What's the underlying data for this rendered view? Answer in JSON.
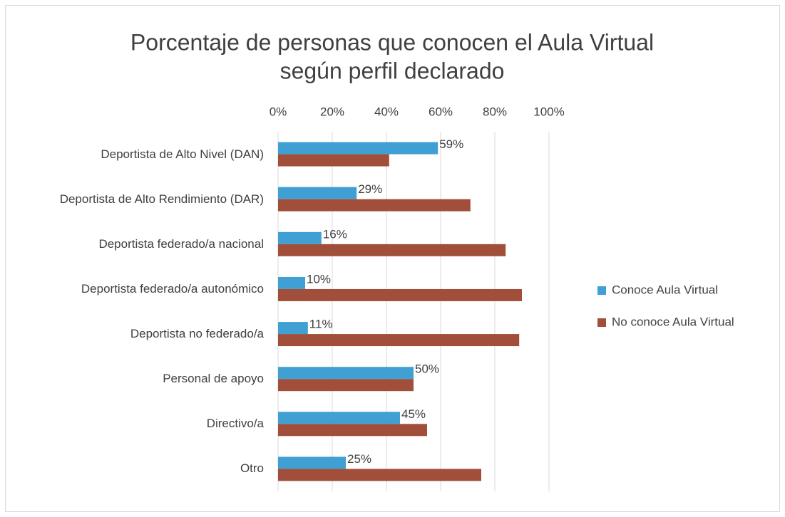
{
  "chart_data": {
    "type": "hbar",
    "title": [
      "Porcentaje de personas que conocen el Aula Virtual",
      "según perfil declarado"
    ],
    "categories": [
      "Deportista de Alto Nivel (DAN)",
      "Deportista de Alto Rendimiento (DAR)",
      "Deportista federado/a nacional",
      "Deportista federado/a autonómico",
      "Deportista no federado/a",
      "Personal de apoyo",
      "Directivo/a",
      "Otro"
    ],
    "series": [
      {
        "name": "Conoce Aula Virtual",
        "color": "#41a0d3",
        "values": [
          59,
          29,
          16,
          10,
          11,
          50,
          45,
          25
        ],
        "value_labels": [
          "59%",
          "29%",
          "16%",
          "10%",
          "11%",
          "50%",
          "45%",
          "25%"
        ]
      },
      {
        "name": "No conoce Aula Virtual",
        "color": "#a14f3b",
        "values": [
          41,
          71,
          84,
          90,
          89,
          50,
          55,
          75
        ]
      }
    ],
    "xlim": [
      0,
      100
    ],
    "xticks": [
      {
        "value": 0,
        "label": "0%"
      },
      {
        "value": 20,
        "label": "20%"
      },
      {
        "value": 40,
        "label": "40%"
      },
      {
        "value": 60,
        "label": "60%"
      },
      {
        "value": 80,
        "label": "80%"
      },
      {
        "value": 100,
        "label": "100%"
      }
    ],
    "grid": true,
    "legend": "right"
  }
}
